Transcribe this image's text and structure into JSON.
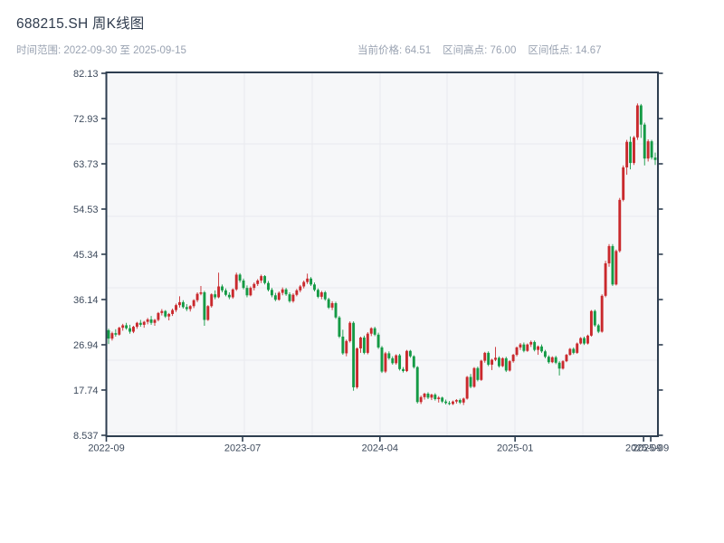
{
  "header": {
    "title": "688215.SH 周K线图",
    "range_label": "时间范围: 2022-09-30 至 2025-09-15",
    "stats": {
      "current": "当前价格: 64.51",
      "high": "区间高点: 76.00",
      "low": "区间低点: 14.67"
    }
  },
  "colors": {
    "title_text": "#2f3b4d",
    "subtitle_text": "#9aa3b2",
    "axis_spine": "#2e3e50",
    "tick_text": "#3d4a5c",
    "plot_bg": "#f6f7f9",
    "grid_line": "#e8eaee",
    "up": "#c9292d",
    "down": "#149a45"
  },
  "chart_data": {
    "type": "candlestick",
    "title": "688215.SH 周K线图",
    "symbol": "688215.SH",
    "freq": "weekly",
    "start_date": "2022-09-30",
    "end_date": "2025-09-15",
    "current_price": 64.51,
    "range_high": 76.0,
    "range_low": 14.67,
    "xlabel": "",
    "ylabel": "",
    "grid": true,
    "legend": false,
    "up_color": "#c9292d",
    "down_color": "#149a45",
    "ylim": [
      8.537,
      82.13
    ],
    "y_ticks": [
      {
        "label": "82.13",
        "value": 82.13
      },
      {
        "label": "72.93",
        "value": 72.93
      },
      {
        "label": "63.73",
        "value": 63.73
      },
      {
        "label": "54.53",
        "value": 54.53
      },
      {
        "label": "45.34",
        "value": 45.34
      },
      {
        "label": "36.14",
        "value": 36.14
      },
      {
        "label": "26.94",
        "value": 26.94
      },
      {
        "label": "17.74",
        "value": 17.74
      },
      {
        "label": "8.537",
        "value": 8.537
      }
    ],
    "x_ticks": [
      {
        "label": "2022-09",
        "pos": 0.0
      },
      {
        "label": "2023-07",
        "pos": 0.247
      },
      {
        "label": "2024-04",
        "pos": 0.496
      },
      {
        "label": "2025-01",
        "pos": 0.741
      },
      {
        "label": "2025-09",
        "pos": 0.974
      },
      {
        "label": "2025-09",
        "pos": 0.987
      }
    ],
    "ohlc_format": [
      "open",
      "high",
      "low",
      "close"
    ],
    "candles": [
      [
        29.9,
        30.2,
        27.1,
        28.2
      ],
      [
        28.2,
        29.6,
        27.8,
        29.3
      ],
      [
        29.3,
        30.1,
        28.6,
        29.0
      ],
      [
        29.0,
        30.6,
        28.8,
        30.4
      ],
      [
        30.4,
        31.2,
        29.8,
        30.9
      ],
      [
        30.9,
        31.4,
        30.0,
        30.3
      ],
      [
        30.3,
        31.0,
        29.2,
        29.6
      ],
      [
        29.6,
        30.8,
        29.3,
        30.6
      ],
      [
        30.6,
        31.6,
        30.2,
        31.4
      ],
      [
        31.4,
        32.0,
        30.6,
        31.0
      ],
      [
        31.0,
        31.8,
        30.4,
        31.6
      ],
      [
        31.6,
        32.4,
        31.1,
        32.1
      ],
      [
        32.1,
        32.8,
        31.0,
        31.4
      ],
      [
        31.4,
        32.2,
        30.8,
        32.0
      ],
      [
        32.0,
        33.6,
        31.7,
        33.4
      ],
      [
        33.4,
        34.2,
        32.9,
        33.8
      ],
      [
        33.8,
        34.0,
        32.4,
        32.7
      ],
      [
        32.7,
        33.4,
        31.9,
        33.2
      ],
      [
        33.2,
        34.3,
        32.8,
        34.0
      ],
      [
        34.0,
        35.3,
        33.6,
        35.0
      ],
      [
        35.0,
        36.8,
        34.5,
        35.6
      ],
      [
        35.6,
        36.0,
        34.3,
        34.6
      ],
      [
        34.6,
        35.2,
        33.8,
        34.2
      ],
      [
        34.2,
        35.0,
        33.7,
        34.8
      ],
      [
        34.8,
        36.2,
        34.4,
        36.0
      ],
      [
        36.0,
        37.6,
        35.6,
        37.3
      ],
      [
        37.3,
        38.9,
        37.0,
        37.6
      ],
      [
        37.6,
        37.9,
        30.8,
        32.0
      ],
      [
        32.0,
        35.0,
        31.8,
        34.8
      ],
      [
        34.8,
        37.4,
        34.5,
        37.2
      ],
      [
        37.2,
        38.0,
        36.2,
        36.6
      ],
      [
        36.6,
        41.6,
        36.4,
        38.8
      ],
      [
        38.8,
        39.2,
        37.6,
        38.0
      ],
      [
        38.0,
        38.4,
        36.8,
        37.1
      ],
      [
        37.1,
        37.6,
        36.2,
        36.6
      ],
      [
        36.6,
        38.4,
        36.3,
        38.2
      ],
      [
        38.2,
        41.6,
        37.9,
        41.2
      ],
      [
        41.2,
        41.5,
        39.6,
        40.0
      ],
      [
        40.0,
        40.4,
        38.2,
        38.5
      ],
      [
        38.5,
        39.0,
        36.6,
        37.0
      ],
      [
        37.0,
        38.8,
        36.8,
        38.5
      ],
      [
        38.5,
        39.6,
        38.0,
        39.3
      ],
      [
        39.3,
        40.3,
        38.9,
        40.0
      ],
      [
        40.0,
        41.2,
        39.5,
        40.9
      ],
      [
        40.9,
        41.1,
        39.2,
        39.5
      ],
      [
        39.5,
        39.9,
        37.8,
        38.1
      ],
      [
        38.1,
        38.5,
        36.6,
        37.0
      ],
      [
        37.0,
        37.5,
        35.8,
        36.1
      ],
      [
        36.1,
        37.8,
        35.9,
        37.5
      ],
      [
        37.5,
        38.6,
        37.0,
        38.2
      ],
      [
        38.2,
        38.5,
        36.9,
        37.2
      ],
      [
        37.2,
        37.6,
        35.5,
        35.8
      ],
      [
        35.8,
        37.4,
        35.5,
        37.1
      ],
      [
        37.1,
        38.3,
        36.8,
        38.0
      ],
      [
        38.0,
        39.1,
        37.6,
        38.8
      ],
      [
        38.8,
        40.0,
        38.4,
        39.7
      ],
      [
        39.7,
        41.4,
        39.3,
        40.4
      ],
      [
        40.4,
        40.7,
        38.9,
        39.2
      ],
      [
        39.2,
        39.6,
        37.8,
        38.1
      ],
      [
        38.1,
        38.4,
        36.4,
        36.7
      ],
      [
        36.7,
        37.9,
        36.2,
        37.6
      ],
      [
        37.6,
        37.9,
        35.9,
        36.2
      ],
      [
        36.2,
        36.5,
        34.2,
        34.5
      ],
      [
        34.5,
        35.8,
        34.0,
        35.4
      ],
      [
        35.4,
        35.7,
        32.2,
        32.5
      ],
      [
        32.5,
        32.8,
        28.3,
        28.6
      ],
      [
        28.6,
        30.0,
        24.9,
        25.2
      ],
      [
        25.2,
        28.0,
        24.6,
        27.7
      ],
      [
        27.7,
        31.7,
        27.4,
        31.4
      ],
      [
        31.4,
        31.7,
        17.6,
        18.3
      ],
      [
        18.3,
        26.4,
        18.0,
        26.2
      ],
      [
        26.2,
        28.6,
        25.3,
        28.4
      ],
      [
        28.4,
        28.8,
        25.0,
        25.3
      ],
      [
        25.3,
        29.5,
        25.0,
        29.2
      ],
      [
        29.2,
        30.5,
        28.7,
        30.3
      ],
      [
        30.3,
        30.6,
        28.7,
        29.0
      ],
      [
        29.0,
        29.4,
        26.1,
        26.4
      ],
      [
        26.4,
        26.7,
        21.2,
        21.5
      ],
      [
        21.5,
        25.5,
        21.2,
        25.2
      ],
      [
        25.2,
        25.6,
        23.9,
        24.2
      ],
      [
        24.2,
        24.6,
        22.9,
        23.2
      ],
      [
        23.2,
        25.0,
        22.9,
        24.8
      ],
      [
        24.8,
        25.1,
        21.7,
        22.0
      ],
      [
        22.0,
        22.4,
        21.3,
        21.6
      ],
      [
        21.6,
        25.9,
        21.4,
        25.7
      ],
      [
        25.7,
        25.9,
        24.3,
        24.6
      ],
      [
        24.6,
        24.8,
        22.1,
        22.4
      ],
      [
        22.4,
        22.6,
        15.0,
        15.3
      ],
      [
        15.3,
        16.6,
        14.9,
        16.3
      ],
      [
        16.3,
        17.2,
        15.8,
        17.0
      ],
      [
        17.0,
        17.3,
        15.9,
        16.2
      ],
      [
        16.2,
        17.0,
        15.7,
        16.8
      ],
      [
        16.8,
        17.1,
        15.6,
        15.9
      ],
      [
        15.9,
        16.5,
        15.2,
        16.2
      ],
      [
        16.2,
        16.4,
        15.1,
        15.4
      ],
      [
        15.4,
        15.8,
        14.8,
        15.1
      ],
      [
        15.1,
        15.5,
        14.67,
        14.9
      ],
      [
        14.9,
        15.6,
        14.7,
        15.4
      ],
      [
        15.4,
        15.9,
        15.0,
        15.7
      ],
      [
        15.7,
        16.0,
        14.9,
        15.2
      ],
      [
        15.2,
        16.2,
        14.7,
        16.0
      ],
      [
        16.0,
        20.6,
        15.8,
        20.4
      ],
      [
        20.4,
        21.0,
        18.1,
        18.4
      ],
      [
        18.4,
        22.4,
        18.2,
        22.2
      ],
      [
        22.2,
        22.5,
        19.5,
        19.8
      ],
      [
        19.8,
        23.9,
        19.6,
        23.7
      ],
      [
        23.7,
        25.5,
        23.3,
        25.3
      ],
      [
        25.3,
        25.6,
        22.6,
        22.9
      ],
      [
        22.9,
        24.1,
        21.8,
        23.9
      ],
      [
        23.9,
        26.5,
        23.6,
        24.3
      ],
      [
        24.3,
        24.6,
        22.3,
        22.6
      ],
      [
        22.6,
        24.4,
        22.4,
        24.2
      ],
      [
        24.2,
        24.5,
        21.4,
        21.7
      ],
      [
        21.7,
        23.8,
        21.5,
        23.6
      ],
      [
        23.6,
        25.1,
        23.3,
        24.9
      ],
      [
        24.9,
        26.6,
        24.6,
        26.4
      ],
      [
        26.4,
        27.3,
        25.9,
        27.0
      ],
      [
        27.0,
        27.4,
        25.4,
        25.7
      ],
      [
        25.7,
        27.2,
        25.5,
        27.0
      ],
      [
        27.0,
        27.8,
        26.5,
        27.5
      ],
      [
        27.5,
        27.8,
        25.6,
        25.9
      ],
      [
        25.9,
        26.8,
        24.9,
        26.6
      ],
      [
        26.6,
        27.0,
        25.3,
        25.6
      ],
      [
        25.6,
        25.9,
        24.2,
        24.5
      ],
      [
        24.5,
        24.8,
        23.1,
        23.4
      ],
      [
        23.4,
        24.6,
        23.2,
        24.4
      ],
      [
        24.4,
        24.7,
        23.0,
        23.3
      ],
      [
        23.3,
        23.6,
        20.7,
        22.1
      ],
      [
        22.1,
        23.8,
        21.9,
        23.6
      ],
      [
        23.6,
        25.1,
        23.4,
        24.9
      ],
      [
        24.9,
        26.3,
        24.7,
        26.1
      ],
      [
        26.1,
        26.4,
        25.0,
        25.3
      ],
      [
        25.3,
        27.4,
        25.1,
        27.2
      ],
      [
        27.2,
        28.5,
        27.0,
        28.3
      ],
      [
        28.3,
        28.6,
        26.9,
        27.2
      ],
      [
        27.2,
        29.0,
        27.0,
        28.8
      ],
      [
        28.8,
        34.0,
        28.6,
        33.8
      ],
      [
        33.8,
        34.1,
        30.6,
        30.9
      ],
      [
        30.9,
        31.2,
        29.3,
        29.6
      ],
      [
        29.6,
        37.2,
        29.4,
        36.9
      ],
      [
        36.9,
        44.0,
        36.6,
        43.5
      ],
      [
        43.5,
        47.4,
        42.8,
        47.0
      ],
      [
        47.0,
        47.4,
        38.9,
        39.2
      ],
      [
        39.2,
        46.3,
        39.0,
        46.0
      ],
      [
        46.0,
        56.8,
        45.7,
        56.4
      ],
      [
        56.4,
        63.4,
        56.1,
        63.0
      ],
      [
        63.0,
        68.6,
        61.5,
        68.2
      ],
      [
        68.2,
        69.3,
        62.6,
        63.9
      ],
      [
        63.9,
        69.4,
        63.5,
        69.1
      ],
      [
        69.1,
        76.0,
        68.6,
        75.6
      ],
      [
        75.6,
        75.9,
        69.0,
        71.7
      ],
      [
        71.7,
        72.1,
        63.4,
        64.8
      ],
      [
        64.8,
        68.7,
        64.2,
        68.3
      ],
      [
        68.3,
        68.6,
        64.6,
        65.0
      ],
      [
        65.0,
        66.0,
        63.5,
        64.51
      ]
    ]
  }
}
